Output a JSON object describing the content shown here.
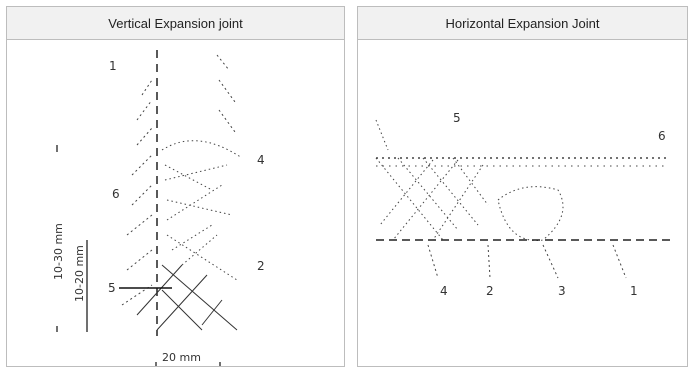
{
  "panels": [
    {
      "title": "Vertical Expansion joint",
      "labels": {
        "n1": "1",
        "n2": "2",
        "n4": "4",
        "n5": "5",
        "n6": "6",
        "dim_total": "10-30 mm",
        "dim_depth": "10-20 mm",
        "dim_width": "20 mm"
      }
    },
    {
      "title": "Horizontal Expansion Joint",
      "labels": {
        "n1": "1",
        "n2": "2",
        "n3": "3",
        "n4": "4",
        "n5": "5",
        "n6": "6"
      }
    }
  ]
}
